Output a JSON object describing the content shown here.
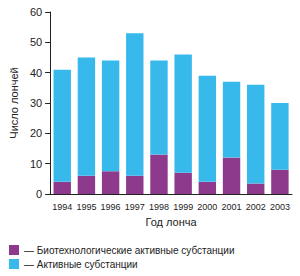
{
  "chart_data": {
    "type": "bar",
    "stacked": true,
    "x_label": "Год лонча",
    "y_label": "Число лончей",
    "categories": [
      "1994",
      "1995",
      "1996",
      "1997",
      "1998",
      "1999",
      "2000",
      "2001",
      "2002",
      "2003"
    ],
    "series": [
      {
        "name": "— Биотехнологические активные субстанции",
        "color": "#8e3a8c",
        "values": [
          4,
          6,
          7.5,
          6,
          13,
          7,
          4,
          12,
          3.5,
          8
        ]
      },
      {
        "name": "— Активные субстанции",
        "color": "#37b9ec",
        "values": [
          37,
          39,
          36.5,
          47,
          31,
          39,
          35,
          25,
          32.5,
          22
        ]
      }
    ],
    "ylim": [
      0,
      60
    ],
    "yticks": [
      0,
      10,
      20,
      30,
      40,
      50,
      60
    ],
    "grid": false,
    "legend": "bottom"
  }
}
